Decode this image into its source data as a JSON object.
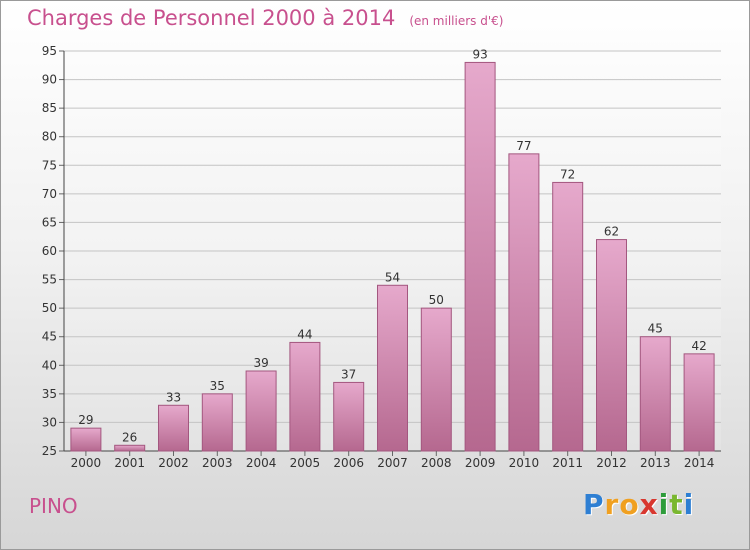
{
  "title": "Charges de Personnel 2000 à 2014",
  "subtitle": "(en milliers d'€)",
  "commune": "PINO",
  "brand": {
    "letters": [
      "P",
      "r",
      "o",
      "x",
      "i",
      "t",
      "i"
    ],
    "colors": [
      "#2e7fd3",
      "#f0a020",
      "#f0a020",
      "#d8372f",
      "#2e9c3b",
      "#7ab730",
      "#2e7fd3"
    ]
  },
  "chart_data": {
    "type": "bar",
    "title": "Charges de Personnel 2000 à 2014",
    "subtitle": "(en milliers d'€)",
    "categories": [
      "2000",
      "2001",
      "2002",
      "2003",
      "2004",
      "2005",
      "2006",
      "2007",
      "2008",
      "2009",
      "2010",
      "2011",
      "2012",
      "2013",
      "2014"
    ],
    "values": [
      29,
      26,
      33,
      35,
      39,
      44,
      37,
      54,
      50,
      93,
      77,
      72,
      62,
      45,
      42
    ],
    "ylim": [
      25,
      95
    ],
    "yticks": [
      25,
      30,
      35,
      40,
      45,
      50,
      55,
      60,
      65,
      70,
      75,
      80,
      85,
      90,
      95
    ],
    "grid": true,
    "bar_color": "#d17cad"
  }
}
